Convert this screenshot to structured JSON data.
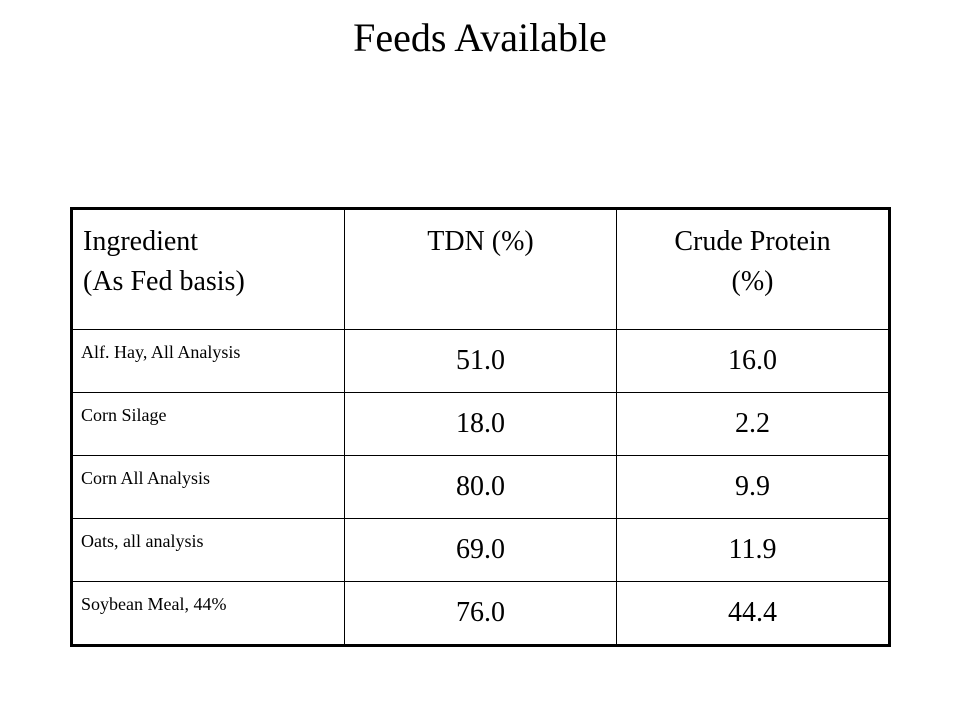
{
  "title": "Feeds Available",
  "table": {
    "headers": {
      "ingredient_line1": "Ingredient",
      "ingredient_line2": "(As Fed basis)",
      "tdn": "TDN (%)",
      "protein_line1": "Crude Protein",
      "protein_line2": "(%)"
    },
    "rows": [
      {
        "ingredient": "Alf. Hay, All Analysis",
        "tdn": "51.0",
        "protein": "16.0"
      },
      {
        "ingredient": "Corn Silage",
        "tdn": "18.0",
        "protein": "2.2"
      },
      {
        "ingredient": "Corn All Analysis",
        "tdn": "80.0",
        "protein": "9.9"
      },
      {
        "ingredient": "Oats, all analysis",
        "tdn": "69.0",
        "protein": "11.9"
      },
      {
        "ingredient": "Soybean Meal, 44%",
        "tdn": "76.0",
        "protein": "44.4"
      }
    ]
  }
}
